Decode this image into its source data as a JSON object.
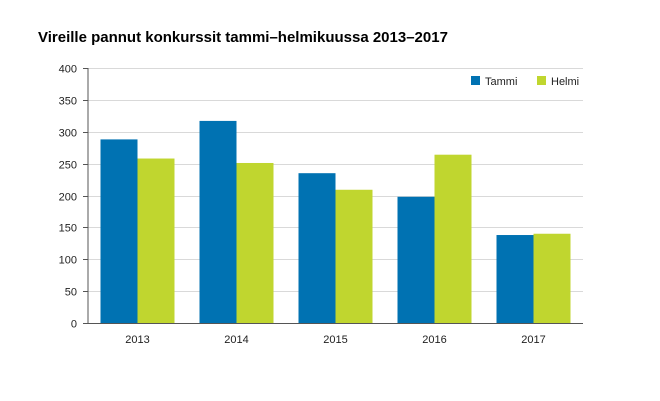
{
  "chart_data": {
    "type": "bar",
    "title": "Vireille pannut konkurssit tammi–helmikuussa 2013–2017",
    "xlabel": "",
    "ylabel": "",
    "categories": [
      "2013",
      "2014",
      "2015",
      "2016",
      "2017"
    ],
    "series": [
      {
        "name": "Tammi",
        "color": "#0072b2",
        "values": [
          288,
          317,
          235,
          198,
          138
        ]
      },
      {
        "name": "Helmi",
        "color": "#c0d62f",
        "values": [
          258,
          251,
          209,
          264,
          140
        ]
      }
    ],
    "ylim": [
      0,
      400
    ],
    "yticks": [
      0,
      50,
      100,
      150,
      200,
      250,
      300,
      350,
      400
    ],
    "grid": true,
    "legend_position": "top-right"
  }
}
